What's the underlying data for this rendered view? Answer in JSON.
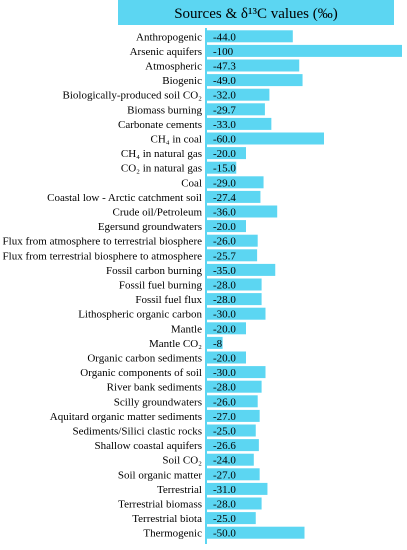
{
  "chart_data": {
    "type": "bar",
    "orientation": "horizontal",
    "title": "Sources & δ¹³C values (‰)",
    "bar_color": "#5cd6f2",
    "categories": [
      "Anthropogenic",
      "Arsenic aquifers",
      "Atmospheric",
      "Biogenic",
      "Biologically-produced soil CO₂",
      "Biomass burning",
      "Carbonate cements",
      "CH₄ in coal",
      "CH₄ in natural gas",
      "CO₂ in natural gas",
      "Coal",
      "Coastal low - Arctic catchment soil",
      "Crude oil/Petroleum",
      "Egersund groundwaters",
      "Flux from atmosphere to terrestrial biosphere",
      "Flux from terrestrial biosphere to atmosphere",
      "Fossil carbon burning",
      "Fossil fuel burning",
      "Fossil fuel flux",
      "Lithospheric organic carbon",
      "Mantle",
      "Mantle CO₂",
      "Organic carbon sediments",
      "Organic components of soil",
      "River bank sediments",
      "Scilly groundwaters",
      "Aquitard organic matter sediments",
      "Sediments/Silici clastic rocks",
      "Shallow coastal aquifers",
      "Soil CO₂",
      "Soil organic matter",
      "Terrestrial",
      "Terrestrial biomass",
      "Terrestrial biota",
      "Thermogenic"
    ],
    "values": [
      -44.0,
      -100,
      -47.3,
      -49.0,
      -32.0,
      -29.7,
      -33.0,
      -60.0,
      -20.0,
      -15.0,
      -29.0,
      -27.4,
      -36.0,
      -20.0,
      -26.0,
      -25.7,
      -35.0,
      -28.0,
      -28.0,
      -30.0,
      -20.0,
      -8,
      -20.0,
      -30.0,
      -28.0,
      -26.0,
      -27.0,
      -25.0,
      -26.6,
      -24.0,
      -27.0,
      -31.0,
      -28.0,
      -25.0,
      -50.0
    ],
    "value_labels": [
      "-44.0",
      "-100",
      "-47.3",
      "-49.0",
      "-32.0",
      "-29.7",
      "-33.0",
      "-60.0",
      "-20.0",
      "-15.0",
      "-29.0",
      "-27.4",
      "-36.0",
      "-20.0",
      "-26.0",
      "-25.7",
      "-35.0",
      "-28.0",
      "-28.0",
      "-30.0",
      "-20.0",
      "-8",
      "-20.0",
      "-30.0",
      "-28.0",
      "-26.0",
      "-27.0",
      "-25.0",
      "-26.6",
      "-24.0",
      "-27.0",
      "-31.0",
      "-28.0",
      "-25.0",
      "-50.0"
    ],
    "xlim": [
      0,
      100
    ],
    "grid": false,
    "legend": "none"
  }
}
